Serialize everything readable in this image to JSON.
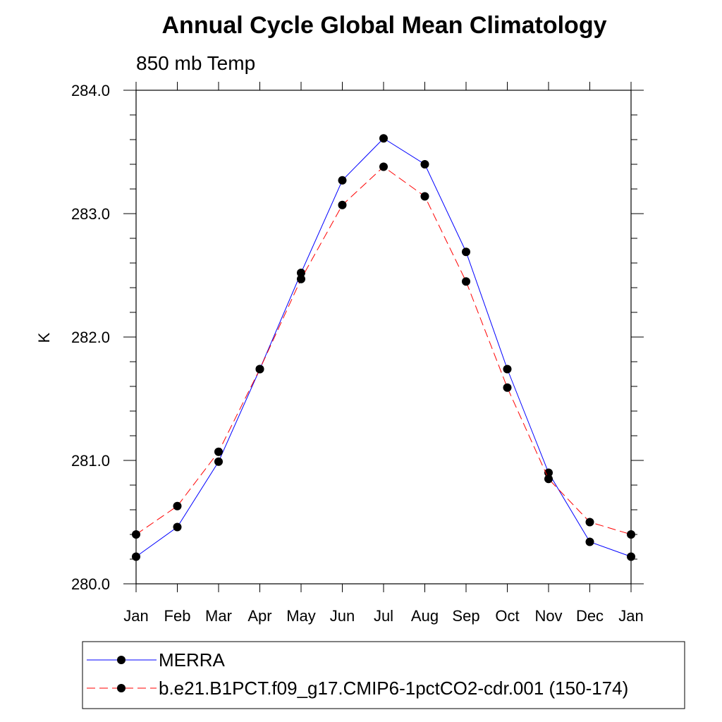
{
  "chart_data": {
    "type": "line",
    "title": "Annual Cycle Global Mean Climatology",
    "subtitle": "850 mb Temp",
    "xlabel": "",
    "ylabel": "K",
    "categories": [
      "Jan",
      "Feb",
      "Mar",
      "Apr",
      "May",
      "Jun",
      "Jul",
      "Aug",
      "Sep",
      "Oct",
      "Nov",
      "Dec",
      "Jan"
    ],
    "ylim": [
      280.0,
      284.0
    ],
    "yticks": [
      "280.0",
      "281.0",
      "282.0",
      "283.0",
      "284.0"
    ],
    "series": [
      {
        "name": "MERRA",
        "color": "#0000ff",
        "style": "solid",
        "values": [
          280.22,
          280.46,
          280.99,
          281.74,
          282.52,
          283.27,
          283.61,
          283.4,
          282.69,
          281.74,
          280.9,
          280.34,
          280.22
        ]
      },
      {
        "name": "b.e21.B1PCT.f09_g17.CMIP6-1pctCO2-cdr.001 (150-174)",
        "color": "#ff0000",
        "style": "dashed",
        "values": [
          280.4,
          280.63,
          281.07,
          281.74,
          282.47,
          283.07,
          283.38,
          283.14,
          282.45,
          281.59,
          280.85,
          280.5,
          280.4
        ]
      }
    ],
    "legend_position": "bottom"
  }
}
